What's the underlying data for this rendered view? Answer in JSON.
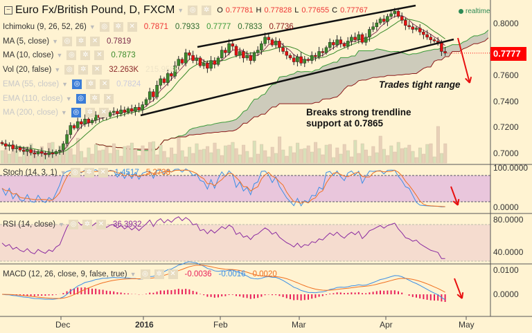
{
  "header": {
    "title": "Euro Fx/British Pound, D, FXCM",
    "o_label": "O",
    "o": "0.77781",
    "h_label": "H",
    "h": "0.77828",
    "l_label": "L",
    "l": "0.77655",
    "c_label": "C",
    "c": "0.77767",
    "realtime": "realtime"
  },
  "indicators": [
    {
      "label": "Ichimoku (9, 26, 52, 26)",
      "values": [
        "0.7871",
        "0.7933",
        "0.7777",
        "0.7833",
        "0.7736"
      ],
      "colors": [
        "#e33",
        "#2d6b2d",
        "#3a9a3a",
        "#2d6b2d",
        "#8b1a1a"
      ]
    },
    {
      "label": "MA (5, close)",
      "values": [
        "0.7819"
      ],
      "colors": [
        "#7a2a4a"
      ]
    },
    {
      "label": "MA (10, close)",
      "values": [
        "0.7873"
      ],
      "colors": [
        "#3a8a2a"
      ]
    },
    {
      "label": "Vol (20, false)",
      "values": [
        "32.263K",
        "215.958K"
      ],
      "colors": [
        "#8b2a2a",
        "#eee4c8"
      ]
    },
    {
      "label": "EMA (55, close)",
      "values": [
        "0.7824"
      ],
      "colors": [
        "#ccd"
      ],
      "faded": true
    },
    {
      "label": "EMA (110, close)",
      "values": [],
      "colors": [],
      "faded": true
    },
    {
      "label": "MA (200, close)",
      "values": [],
      "colors": [],
      "faded": true
    }
  ],
  "panes": {
    "stoch": {
      "label": "Stoch (14, 3, 1)",
      "values": [
        "1.4517",
        "5.2738"
      ],
      "colors": [
        "#3a8ee6",
        "#f07020"
      ]
    },
    "rsi": {
      "label": "RSI (14, close)",
      "values": [
        "36.3932"
      ],
      "colors": [
        "#8a2aa0"
      ]
    },
    "macd": {
      "label": "MACD (12, 26, close, 9, false, true)",
      "values": [
        "-0.0036",
        "-0.0016",
        "0.0020"
      ],
      "colors": [
        "#e8205a",
        "#3a8ee6",
        "#f07020"
      ]
    }
  },
  "annotations": {
    "range": "Trades tight range",
    "breaks": "Breaks strong trendline support at 0.7865"
  },
  "price_axis": {
    "ticks": [
      "0.8000",
      "0.7600",
      "0.7400",
      "0.7200",
      "0.7000"
    ],
    "last": "0.7777",
    "last_color": "#ff0000"
  },
  "stoch_axis": [
    "100.0000",
    "0.0000"
  ],
  "rsi_axis": [
    "80.0000",
    "40.0000"
  ],
  "macd_axis": [
    "0.0100",
    "0.0000"
  ],
  "time_axis": [
    "Dec",
    "2016",
    "Feb",
    "Mar",
    "Apr",
    "May"
  ],
  "chart_data": {
    "type": "candlestick",
    "title": "Euro Fx/British Pound, D, FXCM",
    "ylim": [
      0.69,
      0.812
    ],
    "closes": [
      0.708,
      0.706,
      0.707,
      0.704,
      0.705,
      0.703,
      0.702,
      0.7035,
      0.701,
      0.7,
      0.702,
      0.7005,
      0.6995,
      0.701,
      0.7,
      0.702,
      0.703,
      0.708,
      0.715,
      0.722,
      0.72,
      0.725,
      0.723,
      0.727,
      0.724,
      0.726,
      0.73,
      0.728,
      0.731,
      0.729,
      0.732,
      0.733,
      0.731,
      0.734,
      0.732,
      0.735,
      0.733,
      0.736,
      0.734,
      0.738,
      0.742,
      0.748,
      0.744,
      0.753,
      0.758,
      0.755,
      0.762,
      0.76,
      0.768,
      0.773,
      0.77,
      0.778,
      0.776,
      0.772,
      0.774,
      0.768,
      0.77,
      0.766,
      0.772,
      0.769,
      0.774,
      0.78,
      0.778,
      0.785,
      0.783,
      0.776,
      0.779,
      0.774,
      0.776,
      0.772,
      0.778,
      0.78,
      0.785,
      0.79,
      0.788,
      0.784,
      0.787,
      0.782,
      0.779,
      0.776,
      0.774,
      0.771,
      0.775,
      0.77,
      0.773,
      0.772,
      0.776,
      0.775,
      0.779,
      0.778,
      0.782,
      0.786,
      0.784,
      0.788,
      0.785,
      0.783,
      0.787,
      0.79,
      0.788,
      0.792,
      0.786,
      0.79,
      0.796,
      0.798,
      0.801,
      0.804,
      0.802,
      0.806,
      0.808,
      0.81,
      0.806,
      0.803,
      0.799,
      0.798,
      0.796,
      0.797,
      0.794,
      0.792,
      0.79,
      0.788,
      0.787,
      0.786,
      0.779,
      0.7777
    ],
    "colors": {
      "up": "#3a8a2a",
      "down": "#e81010",
      "cloud": "#c8c6b8"
    }
  }
}
